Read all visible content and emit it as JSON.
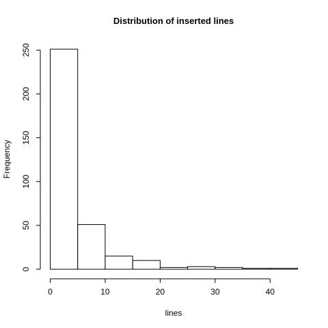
{
  "chart_data": {
    "type": "bar",
    "title": "Distribution of inserted lines",
    "xlabel": "lines",
    "ylabel": "Frequency",
    "bin_edges": [
      0,
      5,
      10,
      15,
      20,
      25,
      30,
      35,
      40,
      45
    ],
    "values": [
      251,
      51,
      15,
      10,
      2,
      3,
      2,
      1,
      1
    ],
    "xlim": [
      0,
      45
    ],
    "ylim": [
      0,
      251
    ],
    "x_ticks": [
      0,
      10,
      20,
      30,
      40
    ],
    "y_ticks": [
      0,
      50,
      100,
      150,
      200,
      250
    ],
    "grid": false,
    "colors": {
      "bar_fill": "#ffffff",
      "bar_stroke": "#000000"
    }
  }
}
